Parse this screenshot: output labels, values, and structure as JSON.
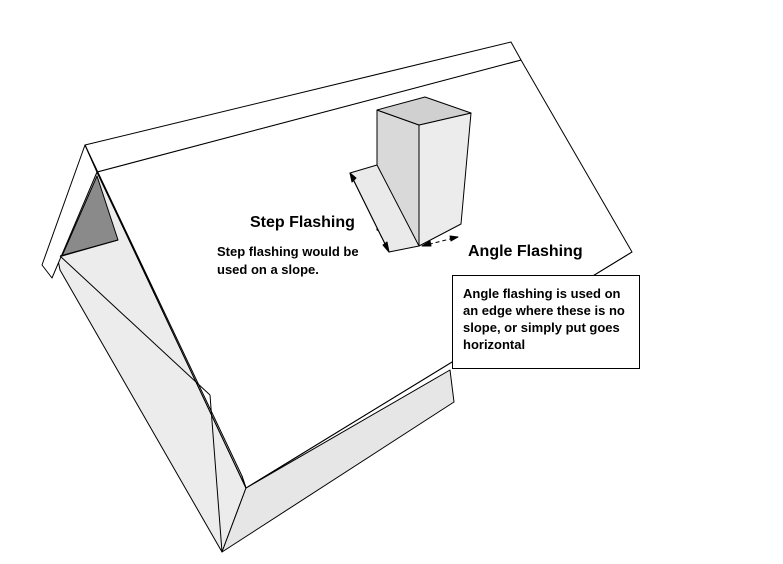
{
  "step_flashing": {
    "title": "Step Flashing",
    "description": "Step flashing would be used on a slope."
  },
  "angle_flashing": {
    "title": "Angle Flashing",
    "description": "Angle flashing is used on an edge where these is no slope, or simply put goes horizontal"
  },
  "colors": {
    "outline": "#000000",
    "roof": "#ffffff",
    "wall_light": "#ececec",
    "wall_mid": "#dedede",
    "wall_dark": "#8a8a8a",
    "chimney_side": "#d9d9d9"
  }
}
